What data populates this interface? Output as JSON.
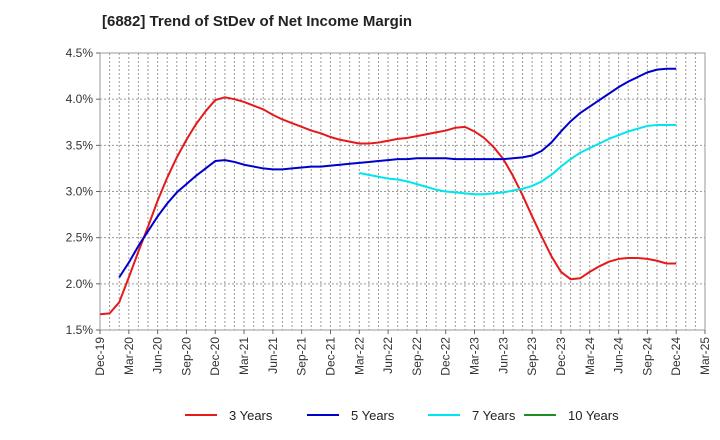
{
  "chart_data": {
    "type": "line",
    "title": "[6882]  Trend of StDev of Net Income Margin",
    "xlabel": "",
    "ylabel": "",
    "x_ticks": [
      "Dec-19",
      "Mar-20",
      "Jun-20",
      "Sep-20",
      "Dec-20",
      "Mar-21",
      "Jun-21",
      "Sep-21",
      "Dec-21",
      "Mar-22",
      "Jun-22",
      "Sep-22",
      "Dec-22",
      "Mar-23",
      "Jun-23",
      "Sep-23",
      "Dec-23",
      "Mar-24",
      "Jun-24",
      "Sep-24",
      "Dec-24",
      "Mar-25"
    ],
    "y_ticks": [
      "1.5%",
      "2.0%",
      "2.5%",
      "3.0%",
      "3.5%",
      "4.0%",
      "4.5%"
    ],
    "ylim": [
      1.5,
      4.5
    ],
    "y_unit": "%",
    "grid": true,
    "legend_position": "bottom",
    "series": [
      {
        "name": "3 Years",
        "color": "#e41a1c",
        "points": [
          [
            "Dec-19",
            1.67
          ],
          [
            "Jan-20",
            1.68
          ],
          [
            "Feb-20",
            1.8
          ],
          [
            "Mar-20",
            2.07
          ],
          [
            "Apr-20",
            2.35
          ],
          [
            "May-20",
            2.62
          ],
          [
            "Jun-20",
            2.9
          ],
          [
            "Jul-20",
            3.15
          ],
          [
            "Aug-20",
            3.37
          ],
          [
            "Sep-20",
            3.56
          ],
          [
            "Oct-20",
            3.73
          ],
          [
            "Nov-20",
            3.87
          ],
          [
            "Dec-20",
            3.99
          ],
          [
            "Jan-21",
            4.02
          ],
          [
            "Feb-21",
            4.0
          ],
          [
            "Mar-21",
            3.97
          ],
          [
            "Apr-21",
            3.93
          ],
          [
            "May-21",
            3.89
          ],
          [
            "Jun-21",
            3.83
          ],
          [
            "Jul-21",
            3.78
          ],
          [
            "Aug-21",
            3.74
          ],
          [
            "Sep-21",
            3.7
          ],
          [
            "Oct-21",
            3.66
          ],
          [
            "Nov-21",
            3.63
          ],
          [
            "Dec-21",
            3.59
          ],
          [
            "Jan-22",
            3.56
          ],
          [
            "Feb-22",
            3.54
          ],
          [
            "Mar-22",
            3.52
          ],
          [
            "Apr-22",
            3.52
          ],
          [
            "May-22",
            3.53
          ],
          [
            "Jun-22",
            3.55
          ],
          [
            "Jul-22",
            3.57
          ],
          [
            "Aug-22",
            3.58
          ],
          [
            "Sep-22",
            3.6
          ],
          [
            "Oct-22",
            3.62
          ],
          [
            "Nov-22",
            3.64
          ],
          [
            "Dec-22",
            3.66
          ],
          [
            "Jan-23",
            3.69
          ],
          [
            "Feb-23",
            3.7
          ],
          [
            "Mar-23",
            3.65
          ],
          [
            "Apr-23",
            3.58
          ],
          [
            "May-23",
            3.48
          ],
          [
            "Jun-23",
            3.35
          ],
          [
            "Jul-23",
            3.17
          ],
          [
            "Aug-23",
            2.96
          ],
          [
            "Sep-23",
            2.73
          ],
          [
            "Oct-23",
            2.51
          ],
          [
            "Nov-23",
            2.3
          ],
          [
            "Dec-23",
            2.13
          ],
          [
            "Jan-24",
            2.05
          ],
          [
            "Feb-24",
            2.06
          ],
          [
            "Mar-24",
            2.13
          ],
          [
            "Apr-24",
            2.19
          ],
          [
            "May-24",
            2.24
          ],
          [
            "Jun-24",
            2.27
          ],
          [
            "Jul-24",
            2.28
          ],
          [
            "Aug-24",
            2.28
          ],
          [
            "Sep-24",
            2.27
          ],
          [
            "Oct-24",
            2.25
          ],
          [
            "Nov-24",
            2.22
          ],
          [
            "Dec-24",
            2.22
          ]
        ]
      },
      {
        "name": "5 Years",
        "color": "#0000cc",
        "points": [
          [
            "Dec-19",
            null
          ],
          [
            "Jan-20",
            null
          ],
          [
            "Feb-20",
            2.07
          ],
          [
            "Mar-20",
            2.23
          ],
          [
            "Apr-20",
            2.41
          ],
          [
            "May-20",
            2.57
          ],
          [
            "Jun-20",
            2.73
          ],
          [
            "Jul-20",
            2.87
          ],
          [
            "Aug-20",
            2.99
          ],
          [
            "Sep-20",
            3.08
          ],
          [
            "Oct-20",
            3.17
          ],
          [
            "Nov-20",
            3.25
          ],
          [
            "Dec-20",
            3.33
          ],
          [
            "Jan-21",
            3.34
          ],
          [
            "Feb-21",
            3.32
          ],
          [
            "Mar-21",
            3.29
          ],
          [
            "Apr-21",
            3.27
          ],
          [
            "May-21",
            3.25
          ],
          [
            "Jun-21",
            3.24
          ],
          [
            "Jul-21",
            3.24
          ],
          [
            "Aug-21",
            3.25
          ],
          [
            "Sep-21",
            3.26
          ],
          [
            "Oct-21",
            3.27
          ],
          [
            "Nov-21",
            3.27
          ],
          [
            "Dec-21",
            3.28
          ],
          [
            "Jan-22",
            3.29
          ],
          [
            "Feb-22",
            3.3
          ],
          [
            "Mar-22",
            3.31
          ],
          [
            "Apr-22",
            3.32
          ],
          [
            "May-22",
            3.33
          ],
          [
            "Jun-22",
            3.34
          ],
          [
            "Jul-22",
            3.35
          ],
          [
            "Aug-22",
            3.35
          ],
          [
            "Sep-22",
            3.36
          ],
          [
            "Oct-22",
            3.36
          ],
          [
            "Nov-22",
            3.36
          ],
          [
            "Dec-22",
            3.36
          ],
          [
            "Jan-23",
            3.35
          ],
          [
            "Feb-23",
            3.35
          ],
          [
            "Mar-23",
            3.35
          ],
          [
            "Apr-23",
            3.35
          ],
          [
            "May-23",
            3.35
          ],
          [
            "Jun-23",
            3.35
          ],
          [
            "Jul-23",
            3.36
          ],
          [
            "Aug-23",
            3.37
          ],
          [
            "Sep-23",
            3.39
          ],
          [
            "Oct-23",
            3.44
          ],
          [
            "Nov-23",
            3.53
          ],
          [
            "Dec-23",
            3.65
          ],
          [
            "Jan-24",
            3.76
          ],
          [
            "Feb-24",
            3.85
          ],
          [
            "Mar-24",
            3.92
          ],
          [
            "Apr-24",
            3.99
          ],
          [
            "May-24",
            4.06
          ],
          [
            "Jun-24",
            4.13
          ],
          [
            "Jul-24",
            4.19
          ],
          [
            "Aug-24",
            4.24
          ],
          [
            "Sep-24",
            4.29
          ],
          [
            "Oct-24",
            4.32
          ],
          [
            "Nov-24",
            4.33
          ],
          [
            "Dec-24",
            4.33
          ]
        ]
      },
      {
        "name": "7 Years",
        "color": "#00e5ee",
        "points": [
          [
            "Mar-22",
            3.2
          ],
          [
            "Apr-22",
            3.18
          ],
          [
            "May-22",
            3.16
          ],
          [
            "Jun-22",
            3.14
          ],
          [
            "Jul-22",
            3.13
          ],
          [
            "Aug-22",
            3.11
          ],
          [
            "Sep-22",
            3.08
          ],
          [
            "Oct-22",
            3.05
          ],
          [
            "Nov-22",
            3.02
          ],
          [
            "Dec-22",
            3.0
          ],
          [
            "Jan-23",
            2.99
          ],
          [
            "Feb-23",
            2.98
          ],
          [
            "Mar-23",
            2.97
          ],
          [
            "Apr-23",
            2.97
          ],
          [
            "May-23",
            2.98
          ],
          [
            "Jun-23",
            2.99
          ],
          [
            "Jul-23",
            3.01
          ],
          [
            "Aug-23",
            3.03
          ],
          [
            "Sep-23",
            3.06
          ],
          [
            "Oct-23",
            3.11
          ],
          [
            "Nov-23",
            3.18
          ],
          [
            "Dec-23",
            3.27
          ],
          [
            "Jan-24",
            3.35
          ],
          [
            "Feb-24",
            3.42
          ],
          [
            "Mar-24",
            3.47
          ],
          [
            "Apr-24",
            3.52
          ],
          [
            "May-24",
            3.57
          ],
          [
            "Jun-24",
            3.61
          ],
          [
            "Jul-24",
            3.65
          ],
          [
            "Aug-24",
            3.68
          ],
          [
            "Sep-24",
            3.71
          ],
          [
            "Oct-24",
            3.72
          ],
          [
            "Nov-24",
            3.72
          ],
          [
            "Dec-24",
            3.72
          ]
        ]
      },
      {
        "name": "10 Years",
        "color": "#228b22",
        "points": []
      }
    ]
  }
}
